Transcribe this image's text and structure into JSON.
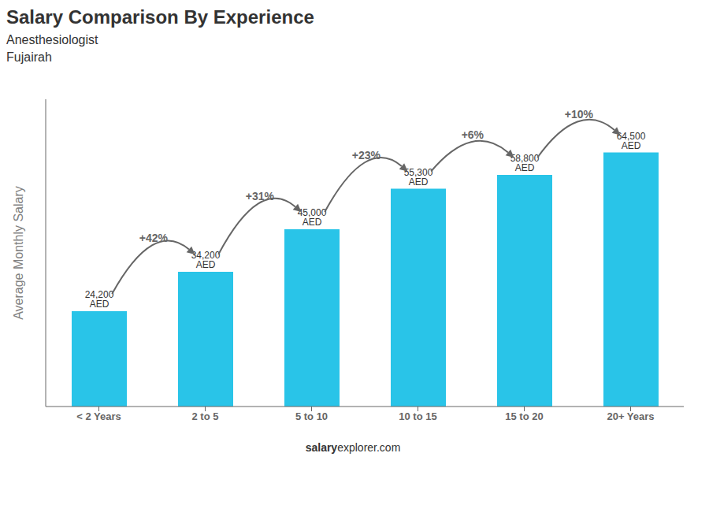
{
  "chart_data": {
    "type": "bar",
    "title": "Salary Comparison By Experience",
    "subtitle": [
      "Anesthesiologist",
      "Fujairah"
    ],
    "y_label": "Average Monthly Salary",
    "categories": [
      "< 2 Years",
      "2 to 5",
      "5 to 10",
      "10 to 15",
      "15 to 20",
      "20+ Years"
    ],
    "values": [
      24200,
      34200,
      45000,
      55300,
      58800,
      64500
    ],
    "value_labels": [
      "24,200 AED",
      "34,200 AED",
      "45,000 AED",
      "55,300 AED",
      "58,800 AED",
      "64,500 AED"
    ],
    "data_labels": true,
    "color": "#29C4E8",
    "ylim": [
      0,
      78000
    ],
    "tick_labels": "x",
    "change_labels": [
      "+42%",
      "+31%",
      "+23%",
      "+6%",
      "+10%"
    ],
    "watermark": [
      "salary",
      "explorer.com"
    ]
  }
}
